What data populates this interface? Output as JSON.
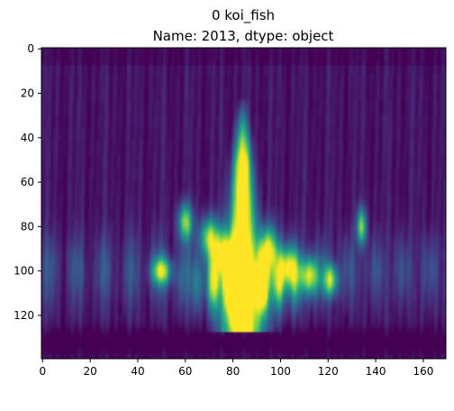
{
  "chart_data": {
    "type": "heatmap",
    "title_line1": "0    koi_fish",
    "title_line2": "Name: 2013, dtype: object",
    "xlabel": "",
    "ylabel": "",
    "xlim": [
      -0.5,
      169.5
    ],
    "ylim": [
      139.5,
      -0.5
    ],
    "x_ticks": [
      0,
      20,
      40,
      60,
      80,
      100,
      120,
      140,
      160
    ],
    "y_ticks": [
      0,
      20,
      40,
      60,
      80,
      100,
      120
    ],
    "grid": false,
    "colormap": "viridis",
    "value_range": [
      0,
      1
    ],
    "rows": 140,
    "cols": 170,
    "description": ""
  },
  "colors": {
    "low": "#440154",
    "mid": "#21918c",
    "high": "#fde725"
  }
}
